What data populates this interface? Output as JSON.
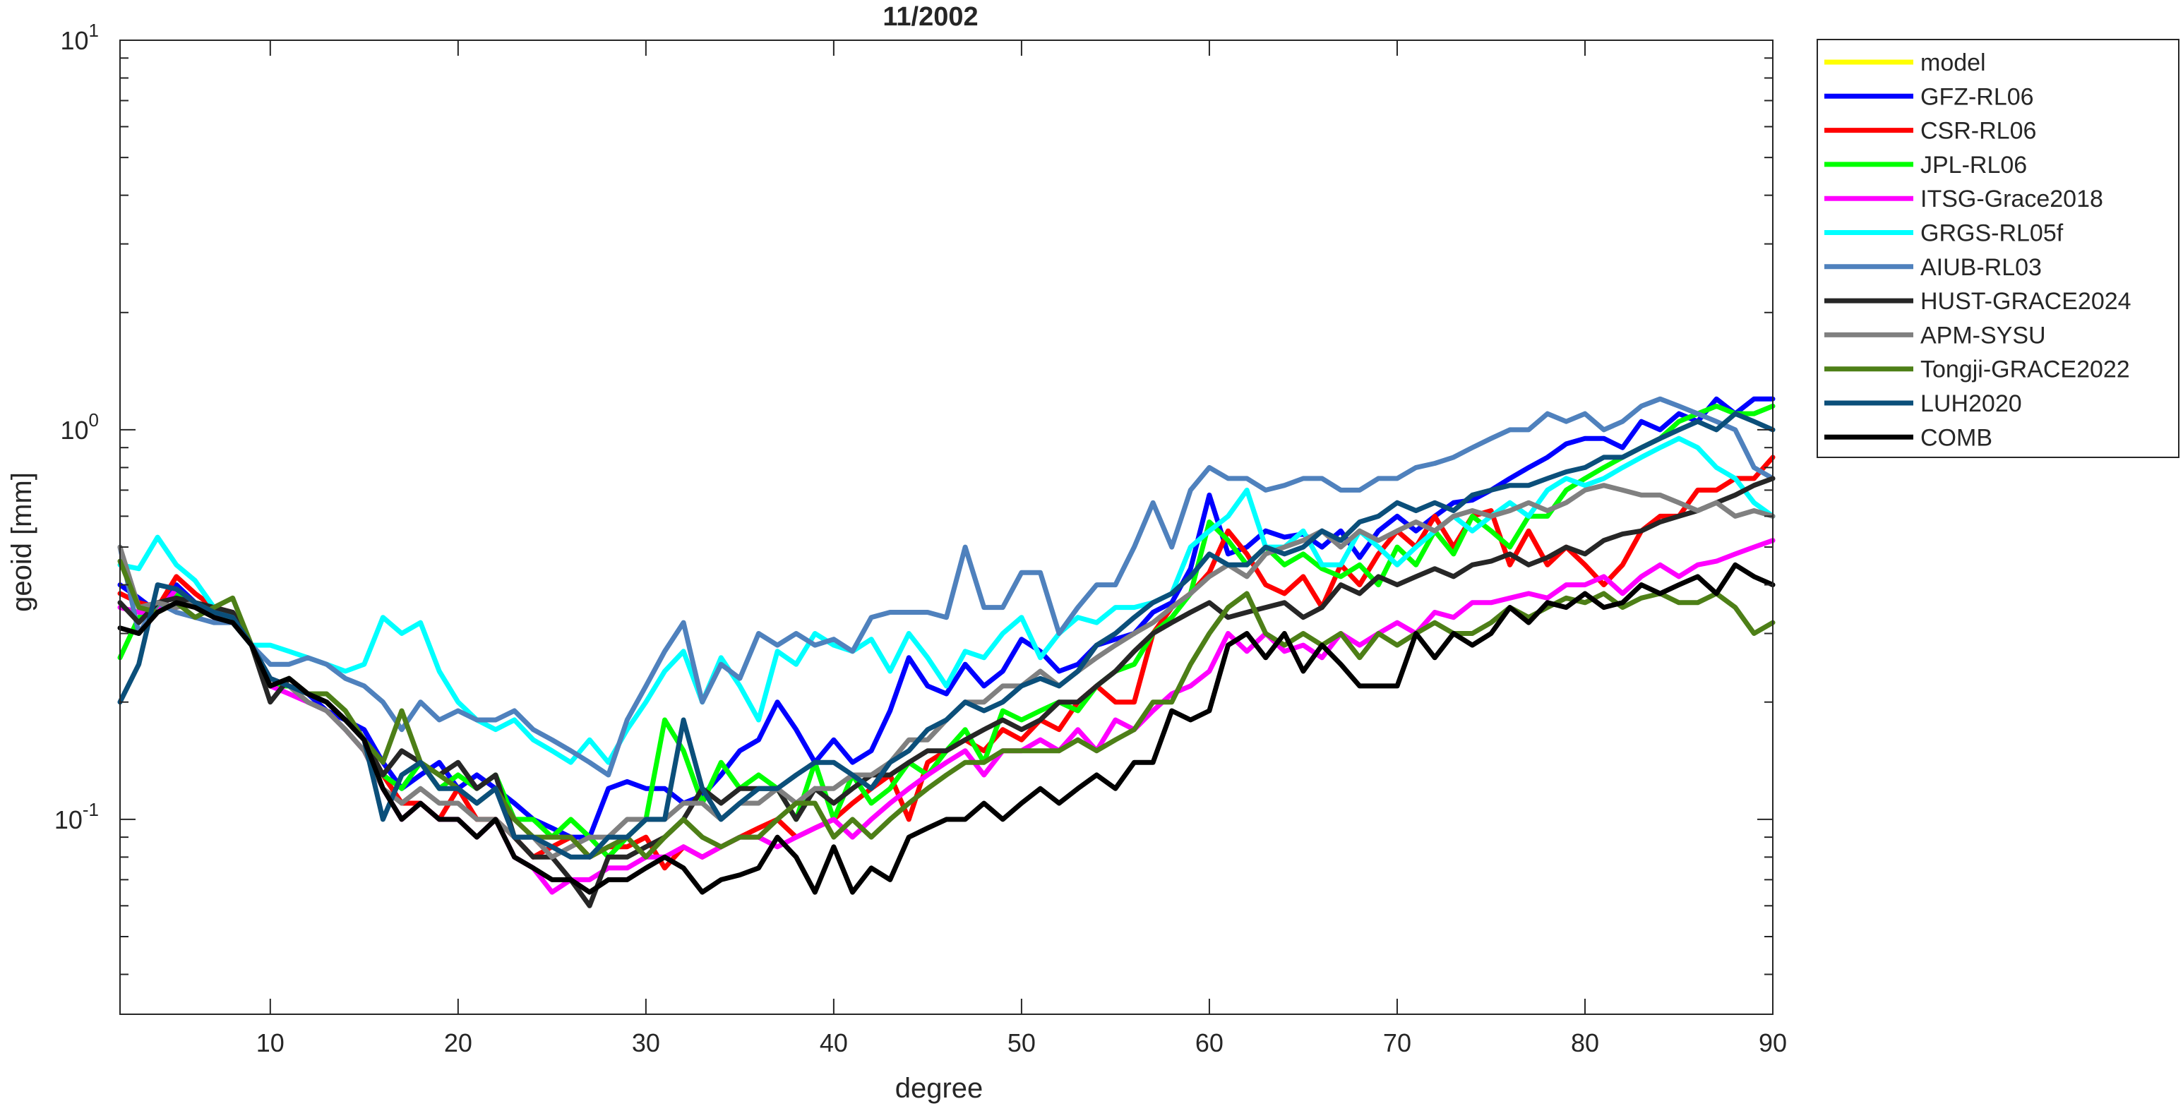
{
  "chart_data": {
    "type": "line",
    "title": "11/2002",
    "xlabel": "degree",
    "ylabel": "geoid [mm]",
    "yscale": "log",
    "xlim": [
      2,
      90
    ],
    "ylim": [
      0.0316,
      10
    ],
    "xticks": [
      10,
      20,
      30,
      40,
      50,
      60,
      70,
      80,
      90
    ],
    "xtick_labels": [
      "10",
      "20",
      "30",
      "40",
      "50",
      "60",
      "70",
      "80",
      "90"
    ],
    "yticks": [
      {
        "value": 10,
        "base": "10",
        "exp": "1"
      },
      {
        "value": 1,
        "base": "10",
        "exp": "0"
      },
      {
        "value": 0.1,
        "base": "10",
        "exp": "-1"
      }
    ],
    "grid": false,
    "legend_position": "outside-top-right",
    "x_start": 2,
    "series": [
      {
        "name": "model",
        "color": "#ffff00",
        "values": []
      },
      {
        "name": "GFZ-RL06",
        "color": "#0000ff",
        "values": [
          0.4,
          0.37,
          0.34,
          0.4,
          0.36,
          0.33,
          0.34,
          0.28,
          0.23,
          0.22,
          0.21,
          0.19,
          0.18,
          0.17,
          0.14,
          0.12,
          0.13,
          0.14,
          0.12,
          0.13,
          0.12,
          0.11,
          0.1,
          0.095,
          0.09,
          0.09,
          0.12,
          0.125,
          0.12,
          0.12,
          0.11,
          0.115,
          0.13,
          0.15,
          0.16,
          0.2,
          0.17,
          0.14,
          0.16,
          0.14,
          0.15,
          0.19,
          0.26,
          0.22,
          0.21,
          0.25,
          0.22,
          0.24,
          0.29,
          0.27,
          0.24,
          0.25,
          0.28,
          0.29,
          0.3,
          0.34,
          0.36,
          0.44,
          0.68,
          0.48,
          0.5,
          0.55,
          0.53,
          0.54,
          0.5,
          0.55,
          0.47,
          0.55,
          0.6,
          0.55,
          0.6,
          0.65,
          0.66,
          0.7,
          0.75,
          0.8,
          0.85,
          0.92,
          0.95,
          0.95,
          0.9,
          1.05,
          1.0,
          1.1,
          1.05,
          1.2,
          1.1,
          1.2,
          1.2
        ]
      },
      {
        "name": "CSR-RL06",
        "color": "#ff0000",
        "values": [
          0.38,
          0.36,
          0.35,
          0.42,
          0.38,
          0.35,
          0.34,
          0.28,
          0.22,
          0.22,
          0.21,
          0.2,
          0.18,
          0.16,
          0.13,
          0.11,
          0.11,
          0.1,
          0.12,
          0.1,
          0.1,
          0.09,
          0.08,
          0.085,
          0.09,
          0.08,
          0.085,
          0.085,
          0.09,
          0.075,
          0.085,
          0.08,
          0.085,
          0.09,
          0.095,
          0.1,
          0.09,
          0.095,
          0.1,
          0.11,
          0.12,
          0.13,
          0.1,
          0.14,
          0.15,
          0.16,
          0.15,
          0.17,
          0.16,
          0.18,
          0.17,
          0.2,
          0.22,
          0.2,
          0.2,
          0.3,
          0.35,
          0.38,
          0.43,
          0.55,
          0.48,
          0.4,
          0.38,
          0.42,
          0.35,
          0.45,
          0.4,
          0.48,
          0.55,
          0.5,
          0.6,
          0.5,
          0.6,
          0.62,
          0.45,
          0.55,
          0.45,
          0.5,
          0.45,
          0.4,
          0.45,
          0.55,
          0.6,
          0.6,
          0.7,
          0.7,
          0.75,
          0.75,
          0.85
        ]
      },
      {
        "name": "JPL-RL06",
        "color": "#00ff00",
        "values": [
          0.26,
          0.33,
          0.35,
          0.38,
          0.36,
          0.34,
          0.33,
          0.28,
          0.22,
          0.22,
          0.2,
          0.19,
          0.17,
          0.15,
          0.13,
          0.12,
          0.14,
          0.12,
          0.13,
          0.12,
          0.13,
          0.1,
          0.1,
          0.09,
          0.1,
          0.09,
          0.08,
          0.09,
          0.1,
          0.18,
          0.15,
          0.11,
          0.14,
          0.12,
          0.13,
          0.12,
          0.1,
          0.14,
          0.1,
          0.13,
          0.11,
          0.12,
          0.14,
          0.13,
          0.15,
          0.17,
          0.14,
          0.19,
          0.18,
          0.19,
          0.2,
          0.19,
          0.22,
          0.24,
          0.25,
          0.3,
          0.33,
          0.38,
          0.58,
          0.52,
          0.45,
          0.5,
          0.45,
          0.48,
          0.44,
          0.42,
          0.45,
          0.4,
          0.5,
          0.45,
          0.55,
          0.48,
          0.6,
          0.55,
          0.5,
          0.6,
          0.6,
          0.7,
          0.75,
          0.8,
          0.85,
          0.9,
          0.95,
          1.05,
          1.1,
          1.15,
          1.1,
          1.1,
          1.15
        ]
      },
      {
        "name": "ITSG-Grace2018",
        "color": "#ff00ff",
        "values": [
          0.35,
          0.34,
          0.34,
          0.39,
          0.36,
          0.33,
          0.33,
          0.28,
          0.22,
          0.21,
          0.2,
          0.19,
          0.17,
          0.15,
          0.12,
          0.1,
          0.11,
          0.1,
          0.1,
          0.09,
          0.1,
          0.08,
          0.075,
          0.065,
          0.07,
          0.07,
          0.075,
          0.075,
          0.08,
          0.08,
          0.085,
          0.08,
          0.085,
          0.09,
          0.09,
          0.085,
          0.09,
          0.095,
          0.1,
          0.09,
          0.1,
          0.11,
          0.12,
          0.13,
          0.14,
          0.15,
          0.13,
          0.15,
          0.15,
          0.16,
          0.15,
          0.17,
          0.15,
          0.18,
          0.17,
          0.19,
          0.21,
          0.22,
          0.24,
          0.3,
          0.27,
          0.3,
          0.27,
          0.28,
          0.26,
          0.3,
          0.28,
          0.3,
          0.32,
          0.3,
          0.34,
          0.33,
          0.36,
          0.36,
          0.37,
          0.38,
          0.37,
          0.4,
          0.4,
          0.42,
          0.38,
          0.42,
          0.45,
          0.42,
          0.45,
          0.46,
          0.48,
          0.5,
          0.52
        ]
      },
      {
        "name": "GRGS-RL05f",
        "color": "#00ffff",
        "values": [
          0.45,
          0.44,
          0.53,
          0.45,
          0.41,
          0.35,
          0.32,
          0.28,
          0.28,
          0.27,
          0.26,
          0.25,
          0.24,
          0.25,
          0.33,
          0.3,
          0.32,
          0.24,
          0.2,
          0.18,
          0.17,
          0.18,
          0.16,
          0.15,
          0.14,
          0.16,
          0.14,
          0.17,
          0.2,
          0.24,
          0.27,
          0.2,
          0.26,
          0.22,
          0.18,
          0.27,
          0.25,
          0.3,
          0.28,
          0.27,
          0.29,
          0.24,
          0.3,
          0.26,
          0.22,
          0.27,
          0.26,
          0.3,
          0.33,
          0.26,
          0.3,
          0.33,
          0.32,
          0.35,
          0.35,
          0.36,
          0.38,
          0.5,
          0.55,
          0.6,
          0.7,
          0.5,
          0.5,
          0.55,
          0.45,
          0.45,
          0.55,
          0.5,
          0.45,
          0.5,
          0.55,
          0.6,
          0.55,
          0.6,
          0.65,
          0.6,
          0.7,
          0.75,
          0.72,
          0.75,
          0.8,
          0.85,
          0.9,
          0.95,
          0.9,
          0.8,
          0.75,
          0.65,
          0.6
        ]
      },
      {
        "name": "AIUB-RL03",
        "color": "#4f81bd",
        "values": [
          0.5,
          0.3,
          0.36,
          0.34,
          0.33,
          0.32,
          0.32,
          0.28,
          0.25,
          0.25,
          0.26,
          0.25,
          0.23,
          0.22,
          0.2,
          0.17,
          0.2,
          0.18,
          0.19,
          0.18,
          0.18,
          0.19,
          0.17,
          0.16,
          0.15,
          0.14,
          0.13,
          0.18,
          0.22,
          0.27,
          0.32,
          0.2,
          0.25,
          0.23,
          0.3,
          0.28,
          0.3,
          0.28,
          0.29,
          0.27,
          0.33,
          0.34,
          0.34,
          0.34,
          0.33,
          0.5,
          0.35,
          0.35,
          0.43,
          0.43,
          0.3,
          0.35,
          0.4,
          0.4,
          0.5,
          0.65,
          0.5,
          0.7,
          0.8,
          0.75,
          0.75,
          0.7,
          0.72,
          0.75,
          0.75,
          0.7,
          0.7,
          0.75,
          0.75,
          0.8,
          0.82,
          0.85,
          0.9,
          0.95,
          1.0,
          1.0,
          1.1,
          1.05,
          1.1,
          1.0,
          1.05,
          1.15,
          1.2,
          1.15,
          1.1,
          1.05,
          1.0,
          0.8,
          0.75
        ]
      },
      {
        "name": "HUST-GRACE2024",
        "color": "#262626",
        "values": [
          0.36,
          0.32,
          0.36,
          0.37,
          0.36,
          0.35,
          0.34,
          0.28,
          0.2,
          0.23,
          0.21,
          0.2,
          0.18,
          0.16,
          0.13,
          0.15,
          0.14,
          0.13,
          0.14,
          0.12,
          0.13,
          0.09,
          0.08,
          0.08,
          0.07,
          0.06,
          0.08,
          0.08,
          0.085,
          0.09,
          0.1,
          0.12,
          0.11,
          0.12,
          0.12,
          0.12,
          0.1,
          0.12,
          0.11,
          0.12,
          0.13,
          0.13,
          0.14,
          0.15,
          0.15,
          0.16,
          0.17,
          0.18,
          0.17,
          0.18,
          0.2,
          0.2,
          0.22,
          0.24,
          0.27,
          0.3,
          0.32,
          0.34,
          0.36,
          0.33,
          0.34,
          0.35,
          0.36,
          0.33,
          0.35,
          0.4,
          0.38,
          0.42,
          0.4,
          0.42,
          0.44,
          0.42,
          0.45,
          0.46,
          0.48,
          0.45,
          0.47,
          0.5,
          0.48,
          0.52,
          0.54,
          0.55,
          0.58,
          0.6,
          0.62,
          0.65,
          0.68,
          0.72,
          0.75
        ]
      },
      {
        "name": "APM-SYSU",
        "color": "#808080",
        "values": [
          0.5,
          0.35,
          0.36,
          0.35,
          0.36,
          0.34,
          0.33,
          0.28,
          0.23,
          0.22,
          0.2,
          0.19,
          0.17,
          0.15,
          0.12,
          0.11,
          0.12,
          0.11,
          0.11,
          0.1,
          0.1,
          0.09,
          0.09,
          0.08,
          0.085,
          0.09,
          0.09,
          0.1,
          0.1,
          0.1,
          0.11,
          0.11,
          0.1,
          0.11,
          0.11,
          0.12,
          0.11,
          0.12,
          0.12,
          0.13,
          0.13,
          0.14,
          0.16,
          0.16,
          0.18,
          0.2,
          0.2,
          0.22,
          0.22,
          0.24,
          0.22,
          0.24,
          0.26,
          0.28,
          0.3,
          0.32,
          0.35,
          0.38,
          0.42,
          0.45,
          0.42,
          0.48,
          0.5,
          0.52,
          0.55,
          0.5,
          0.55,
          0.52,
          0.55,
          0.58,
          0.55,
          0.6,
          0.62,
          0.6,
          0.62,
          0.65,
          0.62,
          0.65,
          0.7,
          0.72,
          0.7,
          0.68,
          0.68,
          0.65,
          0.62,
          0.65,
          0.6,
          0.62,
          0.6
        ]
      },
      {
        "name": "Tongji-GRACE2022",
        "color": "#4d7f17",
        "values": [
          0.46,
          0.35,
          0.34,
          0.36,
          0.33,
          0.35,
          0.37,
          0.28,
          0.22,
          0.23,
          0.21,
          0.21,
          0.19,
          0.16,
          0.14,
          0.19,
          0.14,
          0.13,
          0.12,
          0.11,
          0.12,
          0.1,
          0.09,
          0.09,
          0.09,
          0.08,
          0.085,
          0.09,
          0.08,
          0.09,
          0.1,
          0.09,
          0.085,
          0.09,
          0.09,
          0.1,
          0.11,
          0.11,
          0.09,
          0.1,
          0.09,
          0.1,
          0.11,
          0.12,
          0.13,
          0.14,
          0.14,
          0.15,
          0.15,
          0.15,
          0.15,
          0.16,
          0.15,
          0.16,
          0.17,
          0.2,
          0.2,
          0.25,
          0.3,
          0.35,
          0.38,
          0.3,
          0.28,
          0.3,
          0.28,
          0.3,
          0.26,
          0.3,
          0.28,
          0.3,
          0.32,
          0.3,
          0.3,
          0.32,
          0.35,
          0.33,
          0.35,
          0.37,
          0.36,
          0.38,
          0.35,
          0.37,
          0.38,
          0.36,
          0.36,
          0.38,
          0.35,
          0.3,
          0.32
        ]
      },
      {
        "name": "LUH2020",
        "color": "#0b4f7a",
        "values": [
          0.2,
          0.25,
          0.4,
          0.39,
          0.36,
          0.34,
          0.33,
          0.28,
          0.23,
          0.22,
          0.21,
          0.2,
          0.18,
          0.16,
          0.1,
          0.13,
          0.14,
          0.12,
          0.12,
          0.11,
          0.12,
          0.09,
          0.09,
          0.085,
          0.08,
          0.08,
          0.09,
          0.09,
          0.1,
          0.1,
          0.18,
          0.12,
          0.1,
          0.11,
          0.12,
          0.12,
          0.13,
          0.14,
          0.14,
          0.13,
          0.12,
          0.14,
          0.15,
          0.17,
          0.18,
          0.2,
          0.19,
          0.2,
          0.22,
          0.23,
          0.22,
          0.24,
          0.28,
          0.3,
          0.33,
          0.36,
          0.38,
          0.42,
          0.48,
          0.45,
          0.45,
          0.5,
          0.48,
          0.5,
          0.55,
          0.52,
          0.58,
          0.6,
          0.65,
          0.62,
          0.65,
          0.62,
          0.68,
          0.7,
          0.72,
          0.72,
          0.75,
          0.78,
          0.8,
          0.85,
          0.85,
          0.9,
          0.95,
          1.0,
          1.05,
          1.0,
          1.1,
          1.05,
          1.0
        ]
      },
      {
        "name": "COMB",
        "color": "#000000",
        "values": [
          0.31,
          0.3,
          0.34,
          0.36,
          0.35,
          0.33,
          0.32,
          0.28,
          0.22,
          0.23,
          0.21,
          0.2,
          0.18,
          0.16,
          0.12,
          0.1,
          0.11,
          0.1,
          0.1,
          0.09,
          0.1,
          0.08,
          0.075,
          0.07,
          0.07,
          0.065,
          0.07,
          0.07,
          0.075,
          0.08,
          0.075,
          0.065,
          0.07,
          0.072,
          0.075,
          0.09,
          0.08,
          0.065,
          0.085,
          0.065,
          0.075,
          0.07,
          0.09,
          0.095,
          0.1,
          0.1,
          0.11,
          0.1,
          0.11,
          0.12,
          0.11,
          0.12,
          0.13,
          0.12,
          0.14,
          0.14,
          0.19,
          0.18,
          0.19,
          0.28,
          0.3,
          0.26,
          0.3,
          0.24,
          0.28,
          0.25,
          0.22,
          0.22,
          0.22,
          0.3,
          0.26,
          0.3,
          0.28,
          0.3,
          0.35,
          0.32,
          0.36,
          0.35,
          0.38,
          0.35,
          0.36,
          0.4,
          0.38,
          0.4,
          0.42,
          0.38,
          0.45,
          0.42,
          0.4
        ]
      }
    ]
  }
}
